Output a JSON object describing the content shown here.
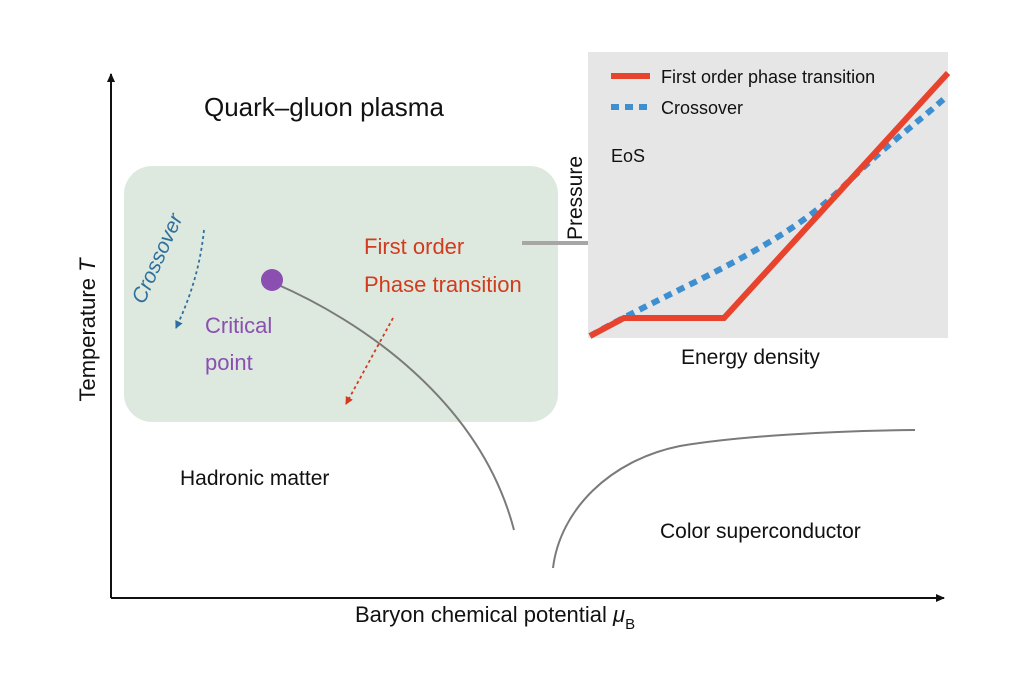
{
  "phase_diagram": {
    "axes": {
      "y_label": "Temperature",
      "y_symbol": "T",
      "x_label": "Baryon chemical potential",
      "x_symbol": "μ",
      "x_subscript": "B"
    },
    "regions": {
      "qgp": "Quark–gluon plasma",
      "hadronic": "Hadronic matter",
      "color_superconductor": "Color superconductor"
    },
    "annotations": {
      "crossover": "Crossover",
      "critical_line1": "Critical",
      "critical_line2": "point",
      "first_order_line1": "First order",
      "first_order_line2": "Phase transition"
    }
  },
  "eos_inset": {
    "tag": "EoS",
    "x_label": "Energy density",
    "y_label": "Pressure",
    "legend": {
      "first_order": "First order phase transition",
      "crossover": "Crossover"
    }
  },
  "colors": {
    "shaded_region": "#dde9df",
    "inset_background": "#e6e6e6",
    "first_order": "#e8432d",
    "crossover_eos": "#3d8fd0",
    "crossover_label": "#2e6f9e",
    "critical_point": "#8a4fb0",
    "first_order_label": "#d23b1e"
  }
}
